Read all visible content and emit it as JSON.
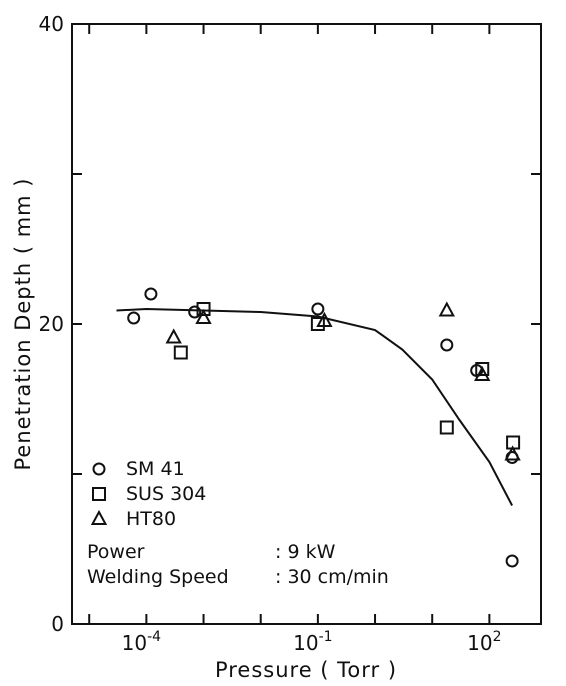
{
  "chart_data": {
    "type": "scatter",
    "title": "",
    "xlabel": "Pressure ( Torr )",
    "ylabel": "Penetration Depth ( mm )",
    "xscale": "log",
    "xlim": [
      5e-06,
      800
    ],
    "ylim": [
      0,
      40
    ],
    "grid": false,
    "y_ticks": [
      {
        "value": 0,
        "label": "0"
      },
      {
        "value": 20,
        "label": "20"
      },
      {
        "value": 40,
        "label": "40"
      }
    ],
    "x_ticks": [
      {
        "value": 0.0001,
        "base": "10",
        "exp": "-4"
      },
      {
        "value": 0.1,
        "base": "10",
        "exp": "-1"
      },
      {
        "value": 100,
        "base": "10",
        "exp": "2"
      }
    ],
    "legend_position": "bottom-left",
    "series": [
      {
        "name": "SM 41",
        "marker": "circle",
        "points": [
          [
            6e-05,
            20.4
          ],
          [
            0.00012,
            22.0
          ],
          [
            0.0007,
            20.8
          ],
          [
            0.1,
            21.0
          ],
          [
            18,
            18.6
          ],
          [
            60,
            16.9
          ],
          [
            250,
            11.1
          ],
          [
            250,
            4.2
          ]
        ]
      },
      {
        "name": "SUS 304",
        "marker": "square",
        "points": [
          [
            0.0004,
            18.1
          ],
          [
            0.001,
            21.0
          ],
          [
            0.1,
            20.0
          ],
          [
            18,
            13.1
          ],
          [
            75,
            17.0
          ],
          [
            260,
            12.1
          ]
        ]
      },
      {
        "name": "HT80",
        "marker": "triangle",
        "points": [
          [
            0.0003,
            19.1
          ],
          [
            0.001,
            20.4
          ],
          [
            0.13,
            20.2
          ],
          [
            18,
            20.9
          ],
          [
            75,
            16.6
          ],
          [
            255,
            11.3
          ]
        ]
      }
    ],
    "fit_curve": [
      [
        3e-05,
        20.9
      ],
      [
        0.0001,
        21.0
      ],
      [
        0.001,
        20.9
      ],
      [
        0.01,
        20.8
      ],
      [
        0.1,
        20.5
      ],
      [
        1,
        19.6
      ],
      [
        3,
        18.3
      ],
      [
        10,
        16.3
      ],
      [
        30,
        13.6
      ],
      [
        100,
        10.8
      ],
      [
        250,
        7.9
      ]
    ]
  },
  "conditions": [
    {
      "label": "Power",
      "value": ": 9 kW"
    },
    {
      "label": "Welding  Speed",
      "value": ": 30 cm/min"
    }
  ]
}
